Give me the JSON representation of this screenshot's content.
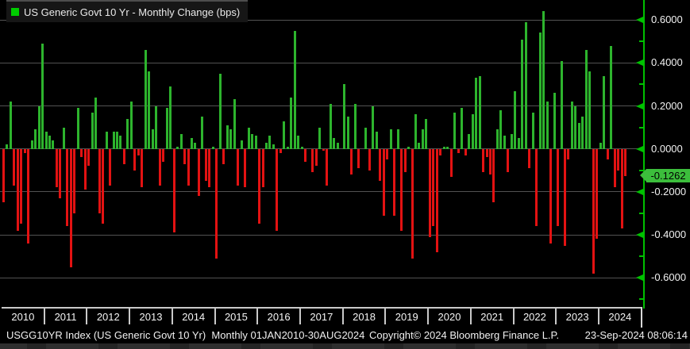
{
  "legend": {
    "label": "US Generic Govt 10 Yr - Monthly Change (bps)",
    "swatch_color": "#00cc00"
  },
  "y_axis": {
    "tick_labels": [
      "0.6000",
      "0.4000",
      "0.2000",
      "0.0000",
      "-0.2000",
      "-0.4000",
      "-0.6000"
    ],
    "tag_label": "-0.1262"
  },
  "x_axis": {
    "years": [
      "2010",
      "2011",
      "2012",
      "2013",
      "2014",
      "2015",
      "2016",
      "2017",
      "2018",
      "2019",
      "2020",
      "2021",
      "2022",
      "2023",
      "2024"
    ]
  },
  "footer": {
    "left": "USGG10YR Index (US Generic Govt 10 Yr)  Monthly 01JAN2010-30AUG2024",
    "center": "Copyright© 2024 Bloomberg Finance L.P.",
    "right": "23-Sep-2024 08:06:14"
  },
  "colors": {
    "up": "#2db42d",
    "down": "#e31212",
    "axis_green": "#00c000",
    "grid": "#525252",
    "tag_bg": "#3cbe3c"
  },
  "chart_data": {
    "type": "bar",
    "title": "US Generic Govt 10 Yr - Monthly Change (bps)",
    "frequency": "Monthly",
    "range_label": "01JAN2010-30AUG2024",
    "ylim": [
      -0.72,
      0.7
    ],
    "grid": true,
    "y_ticks_major": [
      0.6,
      0.4,
      0.2,
      0.0,
      -0.2,
      -0.4,
      -0.6
    ],
    "y_ticks_minor": [
      0.5,
      0.3,
      0.1,
      -0.1,
      -0.3,
      -0.5,
      -0.7
    ],
    "x_years": [
      "2010",
      "2011",
      "2012",
      "2013",
      "2014",
      "2015",
      "2016",
      "2017",
      "2018",
      "2019",
      "2020",
      "2021",
      "2022",
      "2023",
      "2024"
    ],
    "last_value": -0.1262,
    "series": [
      {
        "name": "US Generic Govt 10 Yr - Monthly Change (bps)",
        "start_month": "2010-01",
        "end_month": "2024-08",
        "values": [
          -0.25,
          0.02,
          0.22,
          -0.17,
          -0.38,
          -0.35,
          -0.02,
          -0.44,
          0.04,
          0.09,
          0.2,
          0.49,
          0.08,
          0.06,
          0.04,
          -0.18,
          -0.23,
          0.1,
          -0.36,
          -0.55,
          -0.3,
          0.19,
          -0.04,
          -0.19,
          -0.08,
          0.17,
          0.24,
          -0.3,
          -0.35,
          0.08,
          -0.17,
          0.08,
          0.08,
          0.06,
          -0.07,
          0.14,
          0.22,
          -0.1,
          -0.03,
          -0.18,
          0.46,
          0.36,
          0.09,
          0.2,
          -0.17,
          -0.06,
          0.19,
          0.29,
          -0.39,
          0.01,
          0.07,
          -0.07,
          -0.17,
          0.05,
          0.03,
          -0.22,
          0.15,
          -0.15,
          -0.18,
          0.01,
          -0.51,
          0.35,
          -0.07,
          0.11,
          0.09,
          0.23,
          -0.17,
          0.04,
          -0.18,
          0.1,
          0.07,
          0.06,
          -0.35,
          -0.18,
          0.03,
          0.06,
          0.02,
          -0.38,
          -0.02,
          0.13,
          0.01,
          0.24,
          0.55,
          0.06,
          0.01,
          -0.06,
          0.0,
          -0.11,
          -0.08,
          0.1,
          -0.01,
          -0.17,
          0.21,
          0.05,
          0.03,
          0.0,
          0.3,
          0.15,
          -0.12,
          0.21,
          -0.09,
          0.0,
          0.1,
          -0.1,
          0.2,
          0.08,
          -0.15,
          -0.31,
          -0.05,
          0.09,
          -0.31,
          0.09,
          -0.38,
          -0.11,
          0.01,
          -0.51,
          0.16,
          0.03,
          0.09,
          0.14,
          -0.41,
          -0.36,
          -0.48,
          -0.03,
          0.01,
          0.01,
          -0.13,
          0.17,
          -0.02,
          0.19,
          -0.03,
          0.07,
          0.16,
          0.33,
          0.34,
          -0.11,
          -0.04,
          -0.12,
          -0.25,
          0.09,
          0.18,
          0.06,
          -0.11,
          0.07,
          0.27,
          0.05,
          0.51,
          0.59,
          -0.09,
          0.17,
          -0.36,
          0.54,
          0.64,
          0.22,
          -0.44,
          0.26,
          -0.36,
          0.41,
          -0.45,
          -0.05,
          0.22,
          0.2,
          0.12,
          0.15,
          0.46,
          0.36,
          -0.58,
          -0.42,
          0.03,
          0.34,
          -0.05,
          0.48,
          -0.18,
          -0.1,
          -0.37,
          -0.1262
        ]
      }
    ]
  }
}
